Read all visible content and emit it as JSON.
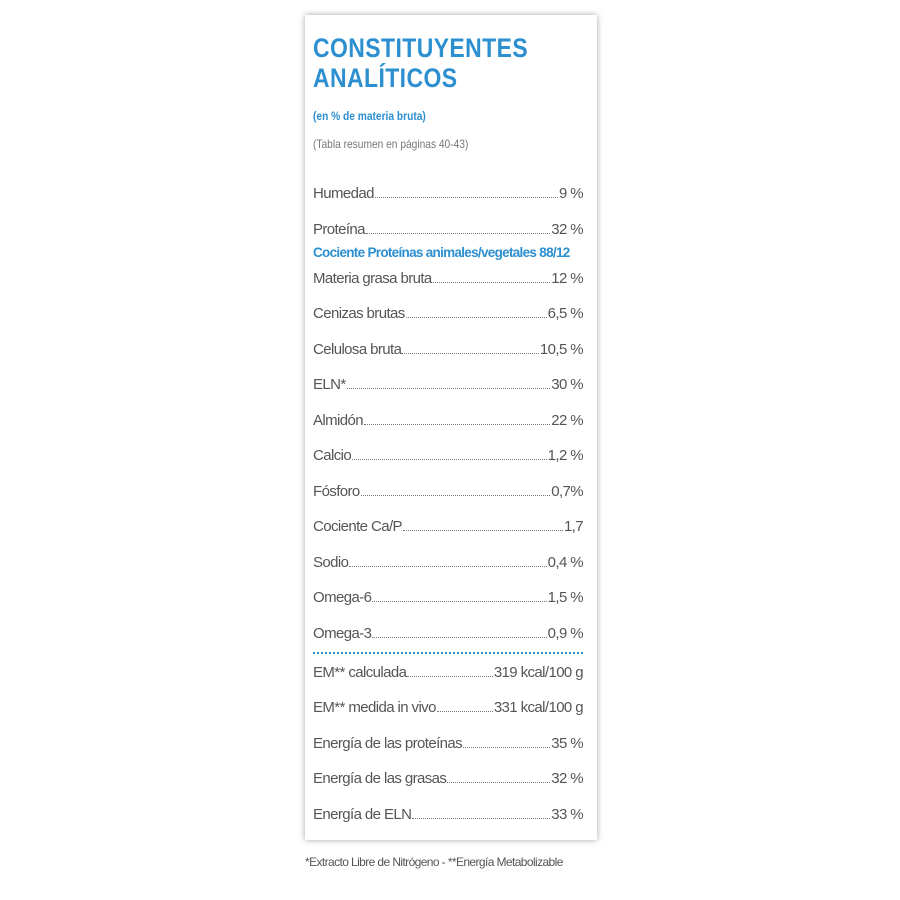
{
  "header": {
    "title_line1": "CONSTITUYENTES",
    "title_line2": "ANALÍTICOS",
    "subtitle": "(en % de materia bruta)",
    "note": "(Tabla resumen en páginas 40-43)"
  },
  "nutrients": [
    {
      "label": "Humedad",
      "value": "9 %"
    },
    {
      "label": "Proteína",
      "value": "32 %"
    }
  ],
  "ratio": {
    "label": "Cociente Proteínas animales/vegetales",
    "value": "88/12"
  },
  "nutrients_more": [
    {
      "label": "Materia grasa bruta",
      "value": "12 %"
    },
    {
      "label": "Cenizas brutas",
      "value": "6,5 %"
    },
    {
      "label": "Celulosa bruta",
      "value": "10,5 %"
    },
    {
      "label": "ELN*",
      "value": "30 %"
    },
    {
      "label": "Almidón",
      "value": "22 %"
    },
    {
      "label": "Calcio",
      "value": "1,2 %"
    },
    {
      "label": "Fósforo",
      "value": "0,7%"
    },
    {
      "label": "Cociente Ca/P",
      "value": "1,7"
    },
    {
      "label": "Sodio",
      "value": "0,4 %"
    },
    {
      "label": "Omega-6",
      "value": "1,5 %"
    },
    {
      "label": "Omega-3",
      "value": "0,9 %"
    }
  ],
  "energy": [
    {
      "label": "EM** calculada",
      "value": "319 kcal/100 g"
    },
    {
      "label": "EM** medida in vivo",
      "value": "331 kcal/100 g"
    },
    {
      "label": "Energía de las proteínas",
      "value": "35 %"
    },
    {
      "label": "Energía de las grasas",
      "value": "32 %"
    },
    {
      "label": "Energía de ELN",
      "value": "33 %"
    }
  ],
  "footnote": "*Extracto Libre de Nitrógeno - **Energía Metabolizable"
}
